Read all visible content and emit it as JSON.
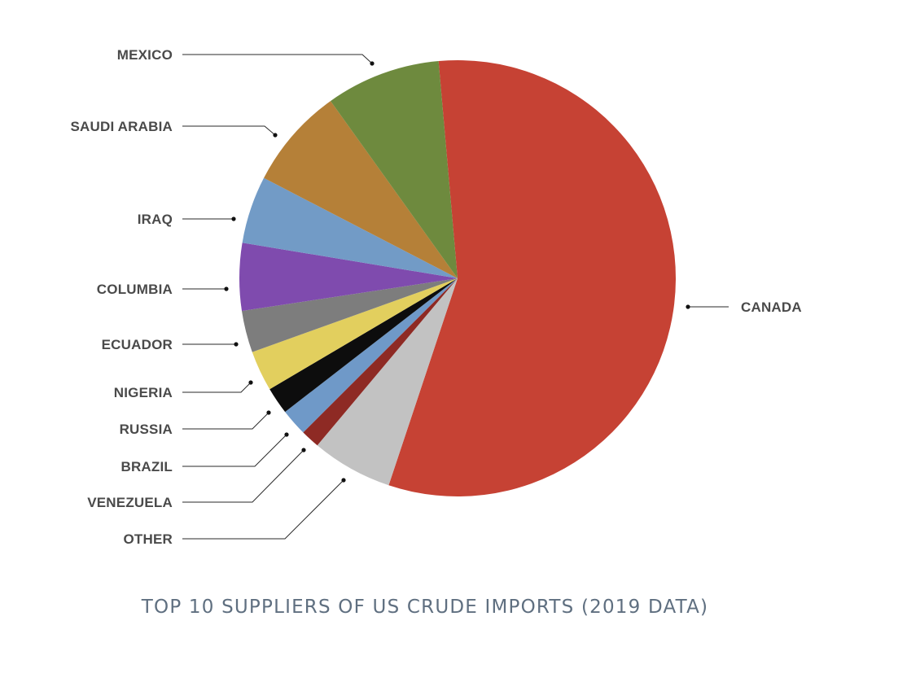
{
  "chart_data": {
    "type": "pie",
    "title": "TOP 10 SUPPLIERS OF US CRUDE IMPORTS (2019 DATA)",
    "start_angle_deg": -5,
    "direction": "clockwise",
    "slices": [
      {
        "label": "CANADA",
        "value": 56.5,
        "color": "#c64234"
      },
      {
        "label": "OTHER",
        "value": 6.0,
        "color": "#c2c2c2"
      },
      {
        "label": "VENEZUELA",
        "value": 1.4,
        "color": "#8e2a24"
      },
      {
        "label": "BRAZIL",
        "value": 2.0,
        "color": "#6f99c8"
      },
      {
        "label": "RUSSIA",
        "value": 2.0,
        "color": "#0d0d0d"
      },
      {
        "label": "NIGERIA",
        "value": 3.0,
        "color": "#e2cf5e"
      },
      {
        "label": "ECUADOR",
        "value": 3.1,
        "color": "#7d7d7d"
      },
      {
        "label": "COLUMBIA",
        "value": 5.0,
        "color": "#7f4bae"
      },
      {
        "label": "IRAQ",
        "value": 5.0,
        "color": "#729bc6"
      },
      {
        "label": "SAUDI ARABIA",
        "value": 7.5,
        "color": "#b58038"
      },
      {
        "label": "MEXICO",
        "value": 8.5,
        "color": "#6e8a3e"
      }
    ]
  }
}
